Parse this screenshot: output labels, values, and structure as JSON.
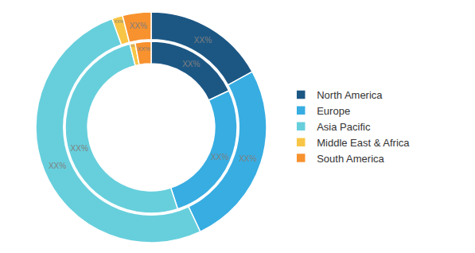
{
  "chart_data": {
    "type": "donut",
    "categories": [
      "North America",
      "Europe",
      "Asia Pacific",
      "Middle East & Africa",
      "South America"
    ],
    "colors": [
      "#1c5784",
      "#37ade2",
      "#67cfdc",
      "#f8c546",
      "#f7922f"
    ],
    "series": [
      {
        "values": [
          18,
          27,
          51,
          1,
          3
        ],
        "value_labels": [
          "XX%",
          "XX%",
          "XX%",
          "XX%",
          "XX%"
        ]
      },
      {
        "values": [
          17,
          26,
          51.5,
          1.5,
          4
        ],
        "value_labels": [
          "XX%",
          "XX%",
          "XX%",
          "XX%",
          "XX%"
        ]
      }
    ],
    "data_labels": true,
    "legend": "right"
  }
}
